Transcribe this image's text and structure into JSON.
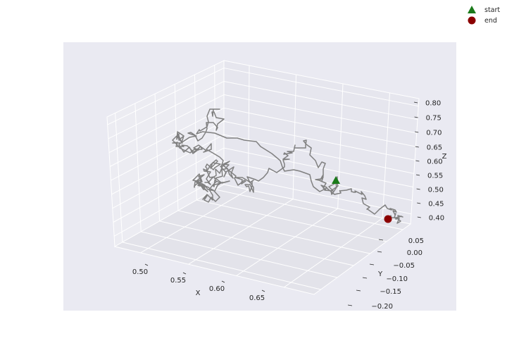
{
  "chart_data": {
    "type": "line",
    "projection": "3d",
    "style": "seaborn-darkgrid",
    "title": "",
    "xlabel": "X",
    "ylabel": "Y",
    "zlabel": "Z",
    "xticks": [
      "0.50",
      "0.55",
      "0.60",
      "0.65"
    ],
    "yticks": [
      "0.05",
      "0.00",
      "−0.05",
      "−0.10",
      "−0.15",
      "−0.20"
    ],
    "zticks": [
      "0.40",
      "0.45",
      "0.50",
      "0.55",
      "0.60",
      "0.65",
      "0.70",
      "0.75",
      "0.80"
    ],
    "xlim": [
      0.46,
      0.7
    ],
    "ylim": [
      -0.22,
      0.07
    ],
    "zlim": [
      0.38,
      0.82
    ],
    "grid": true,
    "legend": {
      "position": "top-right",
      "entries": [
        {
          "label": "start",
          "marker": "triangle",
          "color": "#1a7a1a"
        },
        {
          "label": "end",
          "marker": "circle",
          "color": "#8b0000"
        }
      ]
    },
    "series": [
      {
        "line_color": "#808080",
        "note_points": "random-walk path of ~250 steps"
      }
    ],
    "start_point": {
      "x": 0.62,
      "y": -0.02,
      "z": 0.6
    },
    "end_point": {
      "x": 0.68,
      "y": 0.05,
      "z": 0.5
    }
  }
}
